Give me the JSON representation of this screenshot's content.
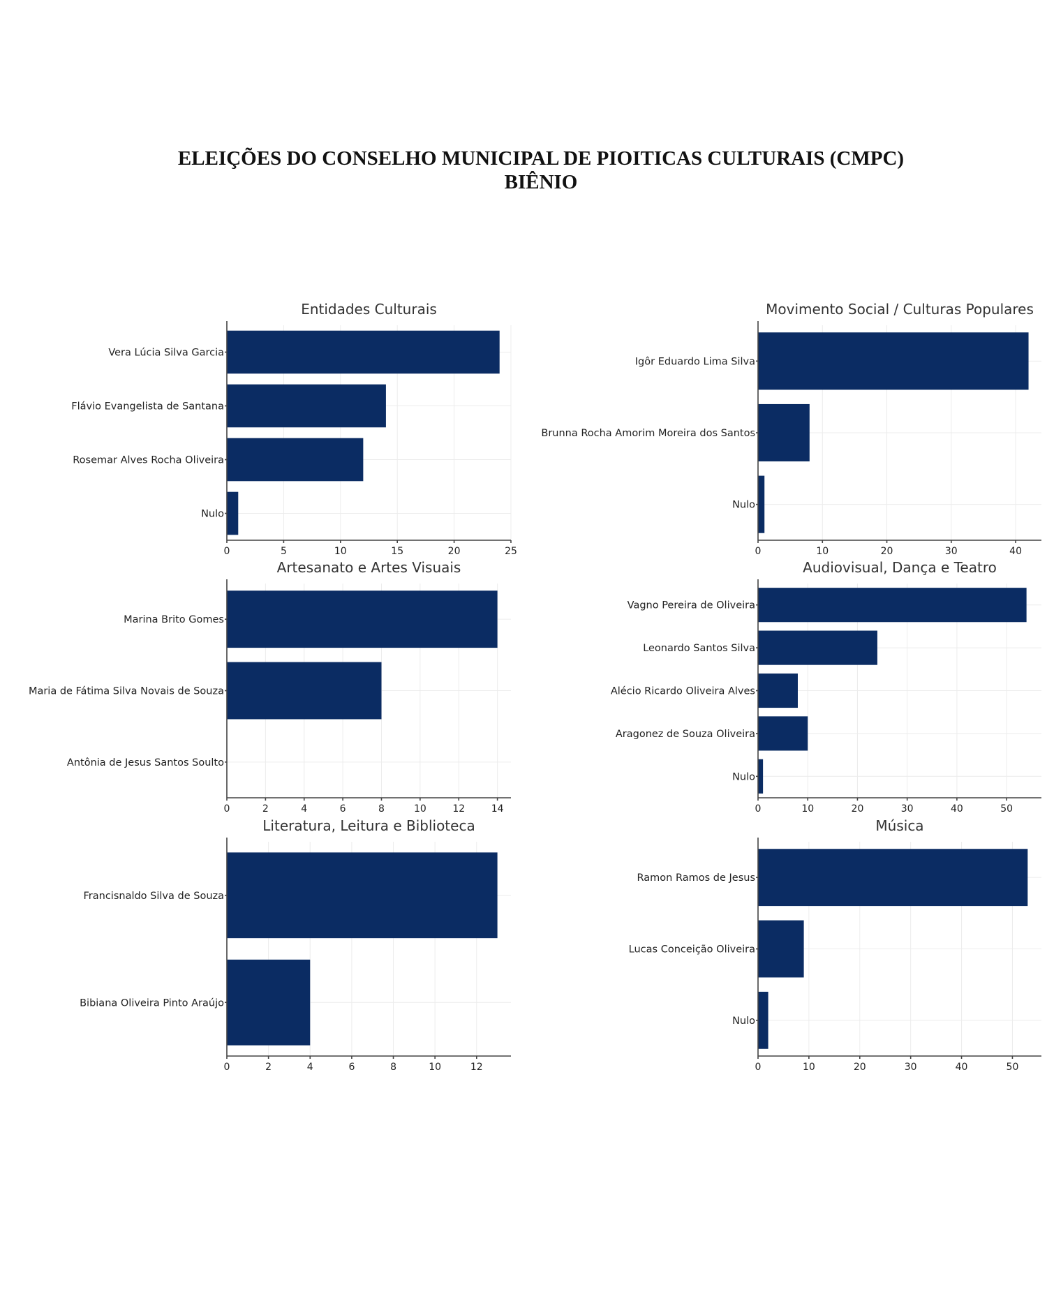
{
  "header": {
    "title_line1": "ELEIÇÕES DO CONSELHO MUNICIPAL DE PIOITICAS CULTURAIS (CMPC)",
    "title_line2": "BIÊNIO"
  },
  "colors": {
    "bar": "#0b2c63"
  },
  "chart_data": [
    {
      "type": "bar",
      "orientation": "horizontal",
      "title": "Entidades Culturais",
      "categories": [
        "Vera Lúcia Silva Garcia",
        "Flávio Evangelista de Santana",
        "Rosemar Alves Rocha Oliveira",
        "Nulo"
      ],
      "values": [
        24,
        14,
        12,
        1
      ],
      "xlim": [
        0,
        25
      ],
      "xticks": [
        0,
        5,
        10,
        15,
        20,
        25
      ],
      "grid": true
    },
    {
      "type": "bar",
      "orientation": "horizontal",
      "title": "Movimento Social / Culturas Populares",
      "categories": [
        "Igôr Eduardo Lima Silva",
        "Brunna Rocha Amorim Moreira dos Santos",
        "Nulo"
      ],
      "values": [
        42,
        8,
        1
      ],
      "xlim": [
        0,
        44
      ],
      "xticks": [
        0,
        10,
        20,
        30,
        40
      ],
      "grid": true
    },
    {
      "type": "bar",
      "orientation": "horizontal",
      "title": "Artesanato e Artes Visuais",
      "categories": [
        "Marina Brito Gomes",
        "Maria de Fátima Silva Novais de Souza",
        "Antônia de Jesus Santos Soulto"
      ],
      "values": [
        14,
        8,
        0
      ],
      "xlim": [
        0,
        14.7
      ],
      "xticks": [
        0,
        2,
        4,
        6,
        8,
        10,
        12,
        14
      ],
      "grid": true
    },
    {
      "type": "bar",
      "orientation": "horizontal",
      "title": "Audiovisual, Dança e Teatro",
      "categories": [
        "Vagno Pereira de Oliveira",
        "Leonardo Santos Silva",
        "Alécio Ricardo Oliveira Alves",
        "Aragonez de Souza Oliveira",
        "Nulo"
      ],
      "values": [
        54,
        24,
        8,
        10,
        1
      ],
      "xlim": [
        0,
        57
      ],
      "xticks": [
        0,
        10,
        20,
        30,
        40,
        50
      ],
      "grid": true
    },
    {
      "type": "bar",
      "orientation": "horizontal",
      "title": "Literatura, Leitura e Biblioteca",
      "categories": [
        "Francisnaldo Silva de Souza",
        "Bibiana Oliveira Pinto Araújo"
      ],
      "values": [
        13,
        4
      ],
      "xlim": [
        0,
        13.65
      ],
      "xticks": [
        0,
        2,
        4,
        6,
        8,
        10,
        12
      ],
      "grid": true
    },
    {
      "type": "bar",
      "orientation": "horizontal",
      "title": "Música",
      "categories": [
        "Ramon Ramos de Jesus",
        "Lucas Conceição Oliveira",
        "Nulo"
      ],
      "values": [
        53,
        9,
        2
      ],
      "xlim": [
        0,
        55.7
      ],
      "xticks": [
        0,
        10,
        20,
        30,
        40,
        50
      ],
      "grid": true
    }
  ]
}
